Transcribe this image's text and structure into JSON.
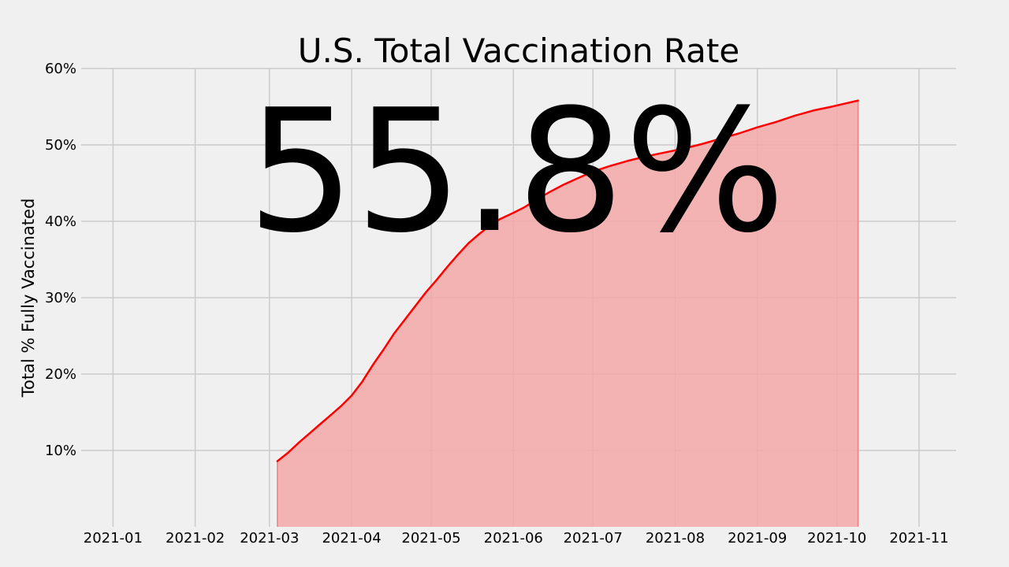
{
  "chart_data": {
    "type": "area",
    "title": "U.S. Total Vaccination Rate",
    "ylabel": "Total % Fully Vaccinated",
    "xlabel": "",
    "headline_value": "55.8%",
    "x_ticks": [
      "2021-01",
      "2021-02",
      "2021-03",
      "2021-04",
      "2021-05",
      "2021-06",
      "2021-07",
      "2021-08",
      "2021-09",
      "2021-10",
      "2021-11"
    ],
    "y_ticks": [
      {
        "value": 10,
        "label": "10%"
      },
      {
        "value": 20,
        "label": "20%"
      },
      {
        "value": 30,
        "label": "30%"
      },
      {
        "value": 40,
        "label": "40%"
      },
      {
        "value": 50,
        "label": "50%"
      },
      {
        "value": 60,
        "label": "60%"
      }
    ],
    "xlim": [
      "2020-12-20",
      "2021-11-15"
    ],
    "ylim": [
      0,
      60
    ],
    "grid": true,
    "series": [
      {
        "color": "#ff0000",
        "fill_color": "#f4a8a8",
        "x": [
          "2021-03-04",
          "2021-03-08",
          "2021-03-12",
          "2021-03-16",
          "2021-03-20",
          "2021-03-24",
          "2021-03-28",
          "2021-04-01",
          "2021-04-05",
          "2021-04-09",
          "2021-04-13",
          "2021-04-17",
          "2021-04-21",
          "2021-04-25",
          "2021-04-29",
          "2021-05-03",
          "2021-05-07",
          "2021-05-11",
          "2021-05-15",
          "2021-05-19",
          "2021-05-23",
          "2021-05-27",
          "2021-06-01",
          "2021-06-05",
          "2021-06-10",
          "2021-06-15",
          "2021-06-20",
          "2021-06-25",
          "2021-07-01",
          "2021-07-07",
          "2021-07-14",
          "2021-07-21",
          "2021-07-28",
          "2021-08-04",
          "2021-08-11",
          "2021-08-18",
          "2021-08-25",
          "2021-09-01",
          "2021-09-08",
          "2021-09-15",
          "2021-09-22",
          "2021-09-29",
          "2021-10-09"
        ],
        "values": [
          8.6,
          9.7,
          11.0,
          12.2,
          13.4,
          14.6,
          15.8,
          17.2,
          19.0,
          21.2,
          23.2,
          25.3,
          27.1,
          28.9,
          30.7,
          32.3,
          34.0,
          35.6,
          37.1,
          38.3,
          39.4,
          40.3,
          41.1,
          41.8,
          42.9,
          43.9,
          44.8,
          45.6,
          46.5,
          47.2,
          47.9,
          48.5,
          49.0,
          49.5,
          50.1,
          50.8,
          51.5,
          52.3,
          53.0,
          53.8,
          54.5,
          55.0,
          55.8
        ]
      }
    ]
  }
}
